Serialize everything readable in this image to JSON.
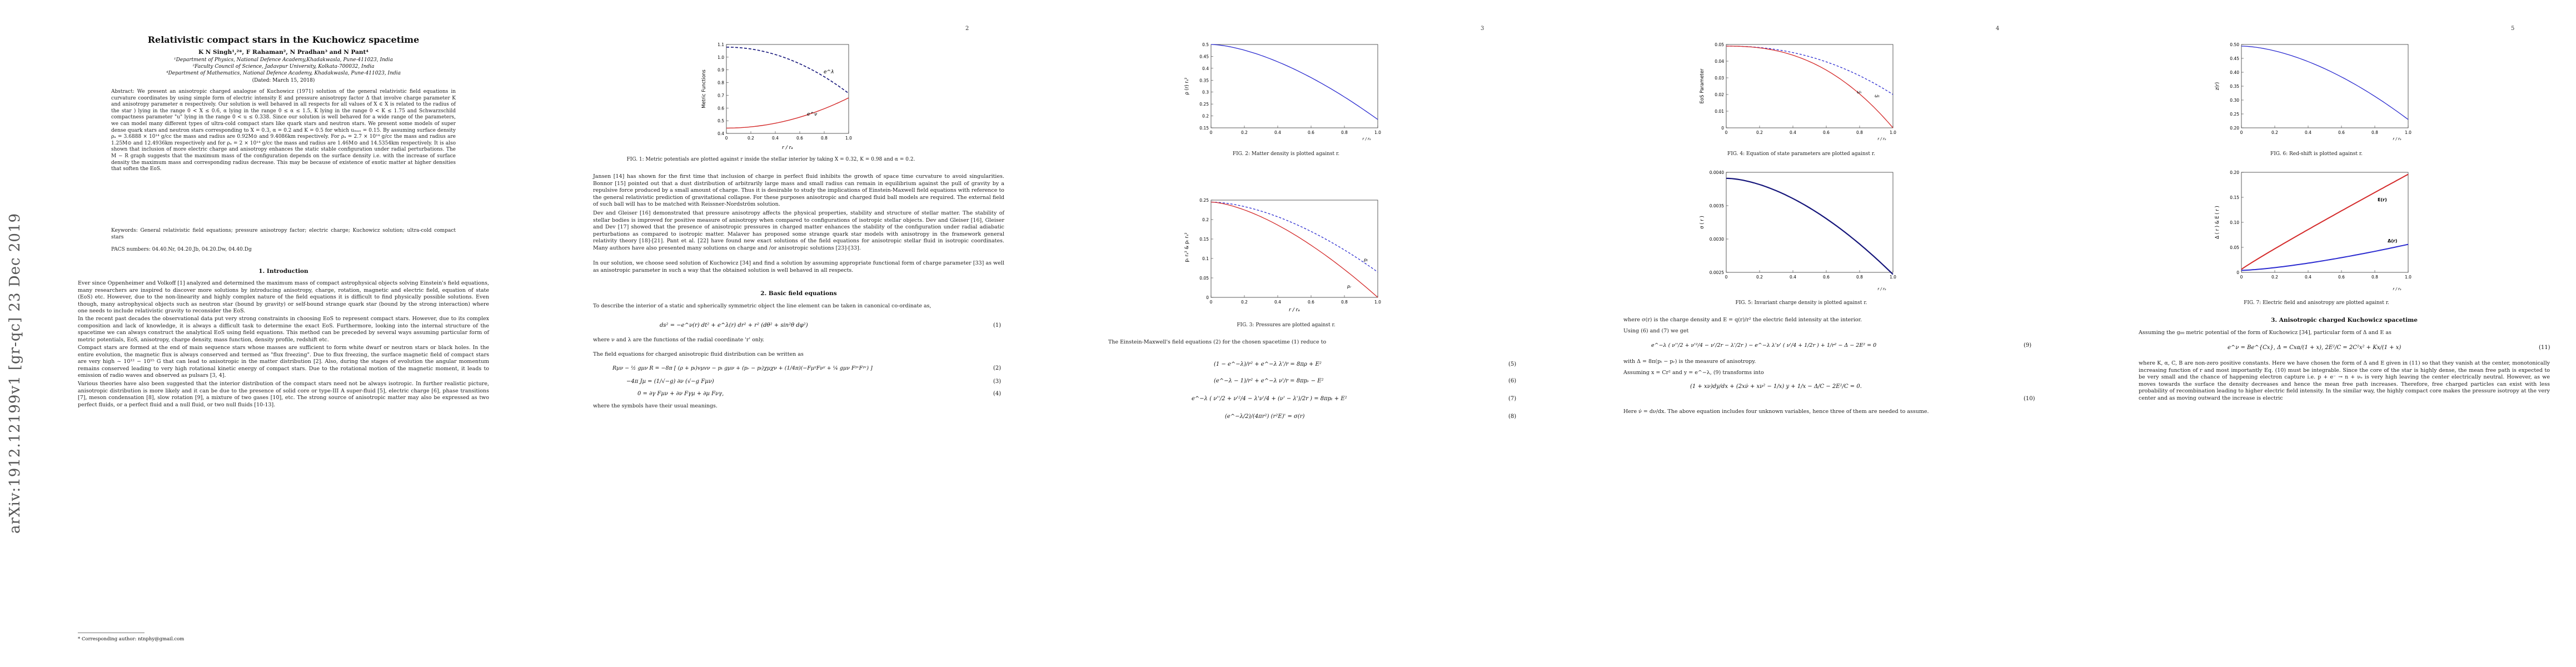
{
  "sidebar": {
    "arxiv_id": "arXiv:1912.12199v1  [gr-qc]  23 Dec 2019"
  },
  "page1": {
    "title": "Relativistic compact stars in the Kuchowicz spacetime",
    "authors": "K N Singh¹,²*, F Rahaman², N Pradhan³ and N Pant⁴",
    "affil1": "¹Department of Physics, National Defence Academy,Khadakwasla, Pune-411023, India",
    "affil2": "²Faculty Council of Science, Jadavpur University, Kolkata-700032, India",
    "affil3": "⁴Department of Mathematics, National Defence Academy, Khadakwasla, Pune-411023, India",
    "dated": "(Dated: March 15, 2018)",
    "abstract": "Abstract: We present an anisotropic charged analogue of Kuchowicz (1971) solution of the general relativistic field equations in curvature coordinates by using simple form of electric intensity E and pressure anisotropy factor Δ that involve charge parameter K and anisotropy parameter α respectively. Our solution is well behaved in all respects for all values of X ∈ X is related to the radius of the star ) lying in the range 0 < X ≤ 0.6, α lying in the range 0 ≤ α ≤ 1.5, K lying in the range 0 < K ≤ 1.75 and Schwarzschild compactness parameter \"u\" lying in the range 0 < u ≤ 0.338. Since our solution is well behaved for a wide range of the parameters, we can model many different types of ultra-cold compact stars like quark stars and neutron stars. We present some models of super dense quark stars and neutron stars corresponding to X = 0.3, α = 0.2 and K = 0.5 for which uₘₐₓ = 0.15. By assuming surface density ρₐ = 3.6888 × 10¹⁴ g/cc the mass and radius are 0.92M⊙ and 9.4086km respectively. For ρₐ = 2.7 × 10¹⁴ g/cc the mass and radius are 1.25M⊙ and 12.4936km respectively and for ρₐ = 2 × 10¹⁴ g/cc the mass and radius are 1.46M⊙ and 14.5354km respectively. It is also shown that inclusion of more electric charge and anisotropy enhances the static stable configuration under radial perturbations. The M − R graph suggests that the maximum mass of the configuration depends on the surface density i.e. with the increase of surface density the maximum mass and corresponding radius decrease. This may be because of existence of exotic matter at higher densities that soften the EoS.",
    "keywords": "Keywords: General relativistic field equations; pressure anisotropy factor; electric charge; Kuchowicz solution; ultra-cold compact stars",
    "pacs": "PACS numbers: 04.40.Nr, 04.20.Jb, 04.20.Dw, 04.40.Dg",
    "intro_heading": "1. Introduction",
    "intro_p1": "Ever since Oppenheimer and Volkoff [1] analyzed and determined the maximum mass of compact astrophysical objects solving Einstein's field equations, many researchers are inspired to discover more solutions by introducing anisotropy, charge, rotation, magnetic and electric field, equation of state (EoS) etc. However, due to the non-linearity and highly complex nature of the field equations it is difficult to find physically possible solutions. Even though, many astrophysical objects such as neutron star (bound by gravity) or self-bound strange quark star (bound by the strong interaction) where one needs to include relativistic gravity to reconsider the EoS.",
    "intro_p2": "In the recent past decades the observational data put very strong constraints in choosing EoS to represent compact stars. However, due to its complex composition and lack of knowledge, it is always a difficult task to determine the exact EoS. Furthermore, looking into the internal structure of the spacetime we can always construct the analytical EoS using field equations. This method can be preceded by several ways assuming particular form of metric potentials, EoS, anisotropy, charge density, mass function, density profile, redshift etc.",
    "intro_p3": "Compact stars are formed at the end of main sequence stars whose masses are sufficient to form white dwarf or neutron stars or black holes. In the entire evolution, the magnetic flux is always conserved and termed as \"flux freezing\". Due to flux freezing, the surface magnetic field of compact stars are very high ~ 10¹² − 10¹⁵ G that can lead to anisotropic in the matter distribution [2]. Also, during the stages of evolution the angular momentum remains conserved leading to very high rotational kinetic energy of compact stars. Due to the rotational motion of the magnetic moment, it leads to emission of radio waves and observed as pulsars [3, 4].",
    "intro_p4": "Various theories have also been suggested that the interior distribution of the compact stars need not be always isotropic. In further realistic picture, anisotropic distribution is more likely and it can be due to the presence of solid core or type-III A super-fluid [5], electric charge [6], phase transitions [7], meson condensation [8], slow rotation [9], a mixture of two gases [10], etc. The strong source of anisotropic matter may also be expressed as two perfect fluids, or a perfect fluid and a null fluid, or two null fluids [10-13].",
    "footnote": "* Corresponding author: ntnphy@gmail.com"
  },
  "page2": {
    "page_number": "2",
    "fig1_caption": "FIG. 1: Metric potentials are plotted against r inside the stellar interior by taking X = 0.32, K = 0.98 and α = 0.2.",
    "p1": "Jansen [14] has shown for the first time that inclusion of charge in perfect fluid inhibits the growth of space time curvature to avoid singularities. Bonnor [15] pointed out that a dust distribution of arbitrarily large mass and small radius can remain in equilibrium against the pull of gravity by a repulsive force produced by a small amount of charge. Thus it is desirable to study the implications of Einstein-Maxwell field equations with reference to the general relativistic prediction of gravitational collapse. For these purposes anisotropic and charged fluid ball models are required. The external field of such ball will has to be matched with Reissner-Nordström solution.",
    "p2": "Dev and Gleiser [16] demonstrated that pressure anisotropy affects the physical properties, stability and structure of stellar matter. The stability of stellar bodies is improved for positive measure of anisotropy when compared to configurations of isotropic stellar objects. Dev and Gleiser [16], Gleiser and Dev [17] showed that the presence of anisotropic pressures in charged matter enhances the stability of the configuration under radial adiabatic perturbations as compared to isotropic matter. Malaver has proposed some strange quark star models with anisotropy in the framework general relativity theory [18]-[21]. Pant et al. [22] have found new exact solutions of the field equations for anisotropic stellar fluid in isotropic coordinates. Many authors have also presented many solutions on charge and /or anisotropic solutions [23]-[33].",
    "p3": "In our solution, we choose seed solution of Kuchowicz [34] and find a solution by assuming appropriate functional form of charge parameter [33] as well as anisotropic parameter in such a way that the obtained solution is well behaved in all respects.",
    "sec2_heading": "2. Basic field equations",
    "p4": "To describe the interior of a static and spherically symmetric object the line element can be taken in canonical co-ordinate as,",
    "eq1": "ds² = −e^ν(r) dt² + e^λ(r) dr² + r² (dθ² + sin²θ dφ²)",
    "p5": "where ν and λ are the functions of the radial coordinate 'r' only.",
    "p6": "The field equations for charged anisotropic fluid distribution can be written as",
    "eq2": "Rµν − ½ gµν R = −8π [ (ρ + pₜ)vµvν − pₜ gµν + (pᵣ − pₜ)χµχν + (1/4π)(−FµᵞFνᵞ + ¼ gµν FᵞᵛFᵞᵛ) ]",
    "eq3": "−4π Jµ = (1/√−g) ∂ν (√−g Fµν)",
    "eq4": "0 = ∂γ Fµν + ∂ν Fγµ + ∂µ Fνγ,",
    "p7": "where the symbols have their usual meanings."
  },
  "page3": {
    "page_number": "3",
    "fig2_caption": "FIG. 2: Matter density is plotted against r.",
    "fig3_caption": "FIG. 3: Pressures are plotted against r.",
    "p1": "The Einstein-Maxwell's field equations (2) for the chosen spacetime (1) reduce to",
    "eq5": "(1 − e^−λ)/r² + e^−λ λ'/r = 8πρ + E²",
    "eq6": "(e^−λ − 1)/r² + e^−λ ν'/r = 8πpᵣ − E²",
    "eq7": "e^−λ ( ν''/2 + ν'²/4 − λ'ν'/4 + (ν' − λ')/2r ) = 8πpₜ + E²",
    "eq8": "(e^−λ/2)/(4πr²) (r²E)' = σ(r)"
  },
  "page4": {
    "page_number": "4",
    "fig4_caption": "FIG. 4: Equation of state parameters are plotted against r.",
    "fig5_caption": "FIG. 5: Invariant charge density is plotted against r.",
    "p1": "where σ(r) is the charge density and E = q(r)/r² the electric field intensity at the interior.",
    "p2": "Using (6) and (7) we get",
    "eq9": "e^−λ ( ν''/2 + ν'²/4 − ν'/2r − λ'/2r ) − e^−λ λ'ν' ( ν'/4 + 1/2r ) + 1/r² − Δ − 2E² = 0",
    "p3": "with Δ = 8π(pₜ − pᵣ) is the measure of anisotropy.",
    "p4": "Assuming x = Cr² and y = e^−λ, (9) transforms into",
    "eq10": "(1 + xν)dy/dx + (2xν̇ + xν² − 1/x) y + 1/x − Δ/C − 2E²/C = 0.",
    "p5": "Here ν̇ = dν/dx. The above equation includes four unknown variables, hence three of them are needed to assume."
  },
  "page5": {
    "page_number": "5",
    "fig6_caption": "FIG. 6: Red-shift is plotted against r.",
    "fig7_caption": "FIG. 7: Electric field and anisotropy are plotted against r.",
    "sec3_heading": "3. Anisotropic charged Kuchowicz spacetime",
    "p1": "Assuming the g₀₀ metric potential of the form of Kuchowicz [34], particular form of Δ and E as",
    "eq11": "e^ν = Be^{Cx}, Δ = Cxα/(1 + x), 2E²/C = 2C²x² + Kx/(1 + x)",
    "p2": "where K, α, C, B are non-zero positive constants. Here we have chosen the form of Δ and E given in (11) so that they vanish at the center, monotonically increasing function of r and most importantly Eq. (10) must be integrable. Since the core of the star is highly dense, the mean free path is expected to be very small and the chance of happening electron capture i.e. p + e⁻ → n + νₑ is very high leaving the center electrically neutral. However, as we moves towards the surface the density decreases and hence the mean free path increases. Therefore, free charged particles can exist with less probability of recombination leading to higher electric field intensity. In the similar way, the highly compact core makes the pressure isotropy at the very center and as moving outward the increase is electric"
  },
  "charts": {
    "fig1": {
      "ylabel": "Metric Functions",
      "xlabel": "r / rₐ",
      "yticks": [
        "0.4",
        "0.5",
        "0.6",
        "0.7",
        "0.8",
        "0.9",
        "1.0",
        "1.1"
      ],
      "xticks": [
        "0",
        "0.2",
        "0.4",
        "0.6",
        "0.8",
        "1.0"
      ],
      "label_a": "e^λ",
      "label_b": "e^ν"
    },
    "fig2": {
      "ylabel": "ρ (r) rₐ²",
      "xlabel": "r / rₐ",
      "yticks": [
        "0.5",
        "0.45",
        "0.4",
        "0.35",
        "0.3",
        "0.25",
        "0.2",
        "0.15"
      ],
      "xticks": [
        "0",
        "0.2",
        "0.4",
        "0.6",
        "0.8",
        "1.0"
      ]
    },
    "fig3": {
      "ylabel": "pᵣ rₐ² & pₜ rₐ²",
      "xlabel": "r / rₐ",
      "yticks": [
        "0.25",
        "0.2",
        "0.15",
        "0.1",
        "0.05",
        "0"
      ],
      "xticks": [
        "0",
        "0.2",
        "0.4",
        "0.6",
        "0.8",
        "1.0"
      ],
      "label_a": "pₜ",
      "label_b": "pᵣ"
    },
    "fig4": {
      "ylabel": "EoS Parameter",
      "xlabel": "r / rₐ",
      "yticks": [
        "0.05",
        "0.04",
        "0.03",
        "0.02",
        "0.01",
        "0"
      ],
      "xticks": [
        "0",
        "0.2",
        "0.4",
        "0.6",
        "0.8",
        "1.0"
      ],
      "label_a": "ωₜ",
      "label_b": "ωᵣ"
    },
    "fig5": {
      "ylabel": "σ ( r )",
      "xlabel": "r / rₐ",
      "yticks": [
        "0.0040",
        "0.0035",
        "0.0030",
        "0.0025"
      ],
      "xticks": [
        "0",
        "0.2",
        "0.4",
        "0.6",
        "0.8",
        "1.0"
      ]
    },
    "fig6": {
      "ylabel": "z(r)",
      "xlabel": "r / rₐ",
      "yticks": [
        "0.50",
        "0.45",
        "0.40",
        "0.35",
        "0.30",
        "0.25",
        "0.20"
      ],
      "xticks": [
        "0",
        "0.2",
        "0.4",
        "0.6",
        "0.8",
        "1.0"
      ]
    },
    "fig7": {
      "ylabel": "Δ ( r ) & E ( r )",
      "xlabel": "r / rₐ",
      "yticks": [
        "0.20",
        "0.15",
        "0.10",
        "0.05",
        "0"
      ],
      "xticks": [
        "0",
        "0.2",
        "0.4",
        "0.6",
        "0.8",
        "1.0"
      ],
      "label_a": "E(r)",
      "label_b": "Δ(r)"
    }
  },
  "colors": {
    "blue": "#2b2bd0",
    "red": "#d42a2a",
    "navy": "#14147a"
  }
}
